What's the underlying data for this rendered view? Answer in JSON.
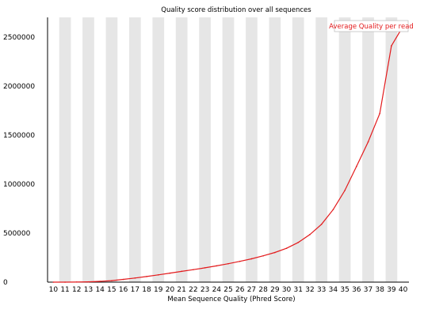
{
  "chart_data": {
    "type": "line",
    "title": "Quality score distribution over all sequences",
    "xlabel": "Mean Sequence Quality (Phred Score)",
    "ylabel": "",
    "x": [
      10,
      11,
      12,
      13,
      14,
      15,
      16,
      17,
      18,
      19,
      20,
      21,
      22,
      23,
      24,
      25,
      26,
      27,
      28,
      29,
      30,
      31,
      32,
      33,
      34,
      35,
      36,
      37,
      38,
      39,
      40
    ],
    "xlim": [
      10,
      40
    ],
    "ylim": [
      0,
      2700000
    ],
    "yticks": [
      0,
      500000,
      1000000,
      1500000,
      2000000,
      2500000
    ],
    "ytick_labels": [
      "0",
      "500000",
      "1000000",
      "1500000",
      "2000000",
      "2500000"
    ],
    "grid": "alternating vertical bands",
    "legend_position": "top-right",
    "series": [
      {
        "name": "Average Quality per read",
        "color": "#e31a1c",
        "values": [
          0,
          0,
          1000,
          3000,
          8000,
          15000,
          28000,
          42000,
          57000,
          74000,
          92000,
          110000,
          127000,
          146000,
          166000,
          188000,
          212000,
          238000,
          268000,
          302000,
          345000,
          405000,
          485000,
          590000,
          740000,
          935000,
          1180000,
          1430000,
          1720000,
          2410000,
          2610000
        ]
      }
    ]
  }
}
